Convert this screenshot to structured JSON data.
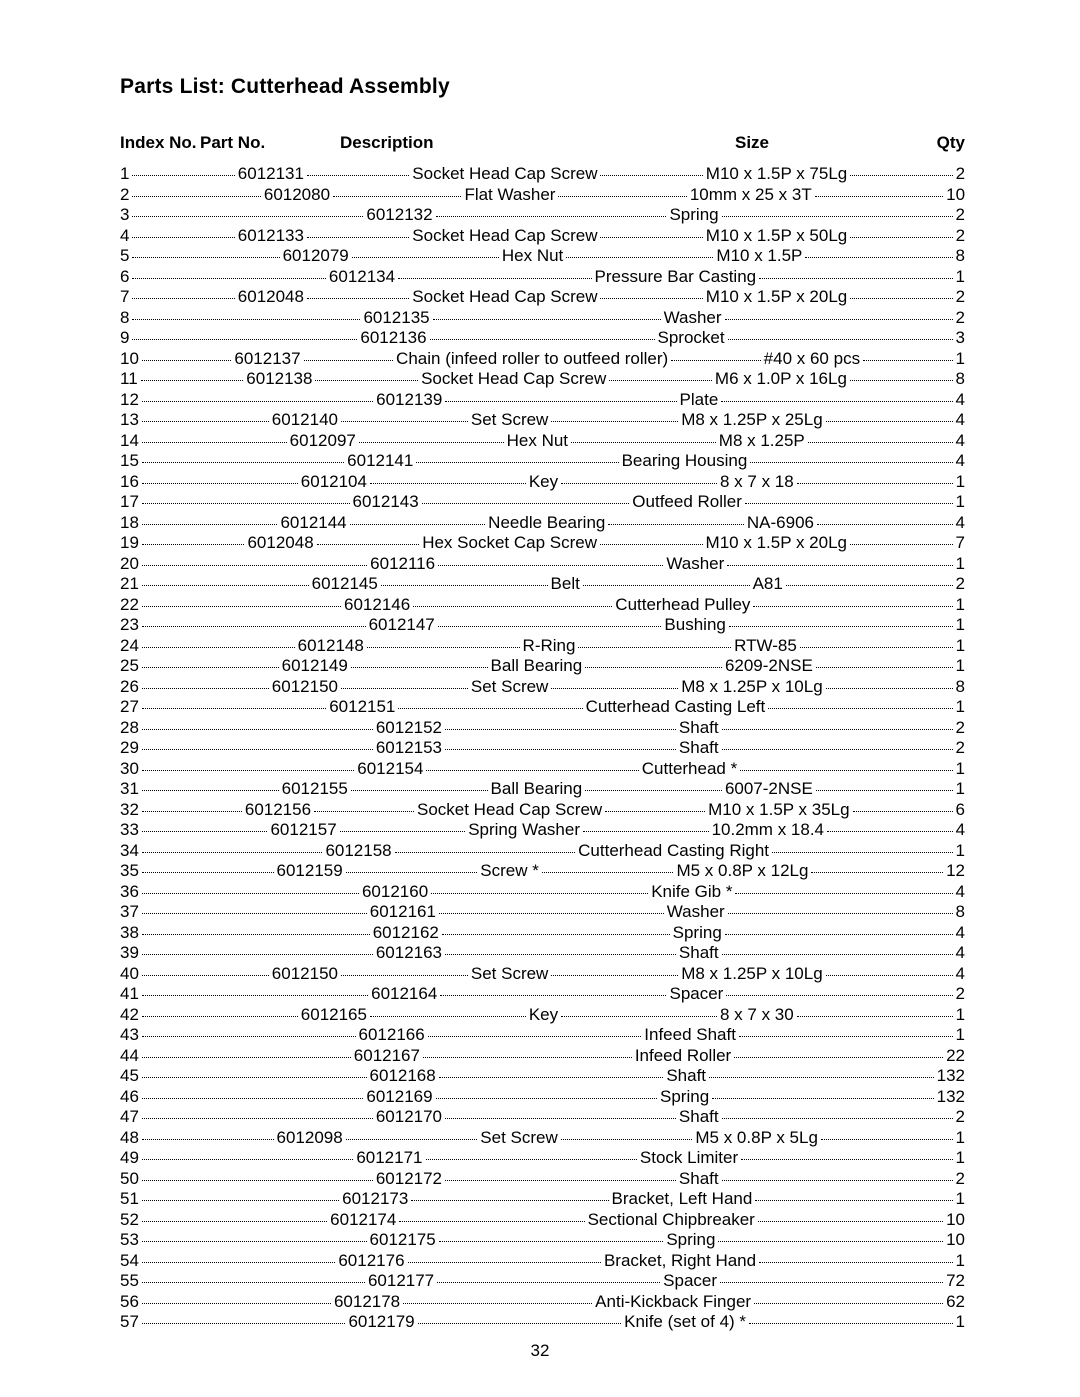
{
  "title": "Parts List: Cutterhead Assembly",
  "headers": {
    "index": "Index No.",
    "part": "Part No.",
    "description": "Description",
    "size": "Size",
    "qty": "Qty"
  },
  "page_number": "32",
  "columns": {
    "index_width": 80,
    "part_width": 140,
    "size_width": 190,
    "qty_width": 40
  },
  "fonts": {
    "title_size": 21,
    "header_size": 17,
    "row_size": 17,
    "family": "Arial"
  },
  "colors": {
    "text": "#000000",
    "background": "#ffffff"
  },
  "rows": [
    {
      "idx": "1",
      "part": "6012131",
      "desc": "Socket Head Cap Screw",
      "size": "M10 x 1.5P x 75Lg",
      "qty": "2"
    },
    {
      "idx": "2",
      "part": "6012080",
      "desc": "Flat Washer",
      "size": "10mm x 25 x 3T",
      "qty": "10"
    },
    {
      "idx": "3",
      "part": "6012132",
      "desc": "Spring",
      "size": "",
      "qty": "2"
    },
    {
      "idx": "4",
      "part": "6012133",
      "desc": "Socket Head Cap Screw",
      "size": "M10 x 1.5P x 50Lg",
      "qty": "2"
    },
    {
      "idx": "5",
      "part": "6012079",
      "desc": "Hex Nut",
      "size": "M10 x 1.5P",
      "qty": "8"
    },
    {
      "idx": "6",
      "part": "6012134",
      "desc": "Pressure Bar Casting",
      "size": "",
      "qty": "1"
    },
    {
      "idx": "7",
      "part": "6012048",
      "desc": "Socket Head Cap Screw",
      "size": "M10 x 1.5P x 20Lg",
      "qty": "2"
    },
    {
      "idx": "8",
      "part": "6012135",
      "desc": "Washer",
      "size": "",
      "qty": "2"
    },
    {
      "idx": "9",
      "part": "6012136",
      "desc": "Sprocket",
      "size": "",
      "qty": "3"
    },
    {
      "idx": "10",
      "part": "6012137",
      "desc": "Chain (infeed roller to outfeed roller)",
      "size": "#40 x 60 pcs",
      "qty": "1"
    },
    {
      "idx": "11",
      "part": "6012138",
      "desc": "Socket Head Cap Screw",
      "size": "M6 x 1.0P x 16Lg",
      "qty": "8"
    },
    {
      "idx": "12",
      "part": "6012139",
      "desc": "Plate",
      "size": "",
      "qty": "4"
    },
    {
      "idx": "13",
      "part": "6012140",
      "desc": "Set Screw",
      "size": "M8 x 1.25P x 25Lg",
      "qty": "4"
    },
    {
      "idx": "14",
      "part": "6012097",
      "desc": "Hex Nut",
      "size": "M8 x 1.25P",
      "qty": "4"
    },
    {
      "idx": "15",
      "part": "6012141",
      "desc": "Bearing Housing",
      "size": "",
      "qty": "4"
    },
    {
      "idx": "16",
      "part": "6012104",
      "desc": "Key",
      "size": "8 x 7 x 18",
      "qty": "1"
    },
    {
      "idx": "17",
      "part": "6012143",
      "desc": "Outfeed Roller",
      "size": "",
      "qty": "1"
    },
    {
      "idx": "18",
      "part": "6012144",
      "desc": "Needle Bearing",
      "size": "NA-6906",
      "qty": "4"
    },
    {
      "idx": "19",
      "part": "6012048",
      "desc": "Hex Socket Cap Screw",
      "size": "M10 x 1.5P x 20Lg",
      "qty": "7"
    },
    {
      "idx": "20",
      "part": "6012116",
      "desc": "Washer",
      "size": "",
      "qty": "1"
    },
    {
      "idx": "21",
      "part": "6012145",
      "desc": "Belt",
      "size": "A81",
      "qty": "2"
    },
    {
      "idx": "22",
      "part": "6012146",
      "desc": "Cutterhead Pulley",
      "size": "",
      "qty": "1"
    },
    {
      "idx": "23",
      "part": "6012147",
      "desc": "Bushing",
      "size": "",
      "qty": "1"
    },
    {
      "idx": "24",
      "part": "6012148",
      "desc": "R-Ring",
      "size": "RTW-85",
      "qty": "1"
    },
    {
      "idx": "25",
      "part": "6012149",
      "desc": "Ball Bearing",
      "size": "6209-2NSE",
      "qty": "1"
    },
    {
      "idx": "26",
      "part": "6012150",
      "desc": "Set Screw",
      "size": "M8 x 1.25P x 10Lg",
      "qty": "8"
    },
    {
      "idx": "27",
      "part": "6012151",
      "desc": "Cutterhead Casting Left",
      "size": "",
      "qty": "1"
    },
    {
      "idx": "28",
      "part": "6012152",
      "desc": "Shaft",
      "size": "",
      "qty": "2"
    },
    {
      "idx": "29",
      "part": "6012153",
      "desc": "Shaft",
      "size": "",
      "qty": "2"
    },
    {
      "idx": "30",
      "part": "6012154",
      "desc": "Cutterhead *",
      "size": "",
      "qty": "1"
    },
    {
      "idx": "31",
      "part": "6012155",
      "desc": "Ball Bearing",
      "size": "6007-2NSE",
      "qty": "1"
    },
    {
      "idx": "32",
      "part": "6012156",
      "desc": "Socket Head Cap Screw",
      "size": "M10 x 1.5P x 35Lg",
      "qty": "6"
    },
    {
      "idx": "33",
      "part": "6012157",
      "desc": "Spring Washer",
      "size": "10.2mm x 18.4",
      "qty": "4"
    },
    {
      "idx": "34",
      "part": "6012158",
      "desc": "Cutterhead Casting Right",
      "size": "",
      "qty": "1"
    },
    {
      "idx": "35",
      "part": "6012159",
      "desc": "Screw *",
      "size": "M5 x 0.8P x 12Lg",
      "qty": "12"
    },
    {
      "idx": "36",
      "part": "6012160",
      "desc": "Knife Gib *",
      "size": "",
      "qty": "4"
    },
    {
      "idx": "37",
      "part": "6012161",
      "desc": "Washer",
      "size": "",
      "qty": "8"
    },
    {
      "idx": "38",
      "part": "6012162",
      "desc": "Spring",
      "size": "",
      "qty": "4"
    },
    {
      "idx": "39",
      "part": "6012163",
      "desc": "Shaft",
      "size": "",
      "qty": "4"
    },
    {
      "idx": "40",
      "part": "6012150",
      "desc": "Set Screw",
      "size": "M8 x 1.25P x 10Lg",
      "qty": "4"
    },
    {
      "idx": "41",
      "part": "6012164",
      "desc": "Spacer",
      "size": "",
      "qty": "2"
    },
    {
      "idx": "42",
      "part": "6012165",
      "desc": "Key",
      "size": "8 x 7 x 30",
      "qty": "1"
    },
    {
      "idx": "43",
      "part": "6012166",
      "desc": "Infeed Shaft",
      "size": "",
      "qty": "1"
    },
    {
      "idx": "44",
      "part": "6012167",
      "desc": "Infeed Roller",
      "size": "",
      "qty": "22"
    },
    {
      "idx": "45",
      "part": "6012168",
      "desc": "Shaft",
      "size": "",
      "qty": "132"
    },
    {
      "idx": "46",
      "part": "6012169",
      "desc": "Spring",
      "size": "",
      "qty": "132"
    },
    {
      "idx": "47",
      "part": "6012170",
      "desc": "Shaft",
      "size": "",
      "qty": "2"
    },
    {
      "idx": "48",
      "part": "6012098",
      "desc": "Set Screw",
      "size": "M5 x 0.8P x 5Lg",
      "qty": "1"
    },
    {
      "idx": "49",
      "part": "6012171",
      "desc": "Stock Limiter",
      "size": "",
      "qty": "1"
    },
    {
      "idx": "50",
      "part": "6012172",
      "desc": "Shaft",
      "size": "",
      "qty": "2"
    },
    {
      "idx": "51",
      "part": "6012173",
      "desc": "Bracket, Left Hand",
      "size": "",
      "qty": "1"
    },
    {
      "idx": "52",
      "part": "6012174",
      "desc": "Sectional Chipbreaker",
      "size": "",
      "qty": "10"
    },
    {
      "idx": "53",
      "part": "6012175",
      "desc": "Spring",
      "size": "",
      "qty": "10"
    },
    {
      "idx": "54",
      "part": "6012176",
      "desc": "Bracket, Right Hand",
      "size": "",
      "qty": "1"
    },
    {
      "idx": "55",
      "part": "6012177",
      "desc": "Spacer",
      "size": "",
      "qty": "72"
    },
    {
      "idx": "56",
      "part": "6012178",
      "desc": "Anti-Kickback Finger",
      "size": "",
      "qty": "62"
    },
    {
      "idx": "57",
      "part": "6012179",
      "desc": "Knife (set of 4) *",
      "size": "",
      "qty": "1"
    }
  ]
}
